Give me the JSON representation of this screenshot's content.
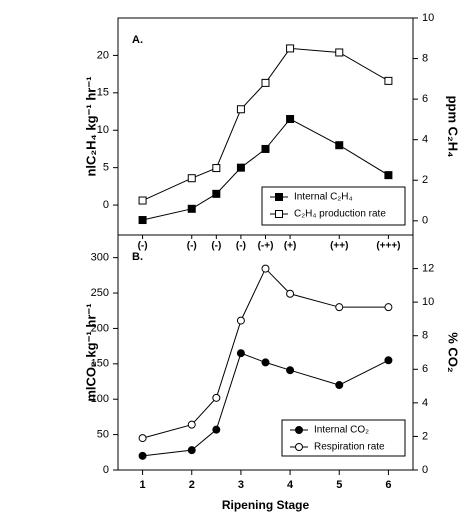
{
  "chart_data": [
    {
      "type": "line",
      "panel_label": "A.",
      "y_label": "nlC₂H₄ kg⁻¹ hr⁻¹",
      "y2_label": "ppm C₂H₄",
      "x": [
        1,
        2,
        2.5,
        3,
        3.5,
        4,
        5,
        6
      ],
      "x_labels": [
        "(-)",
        "(-)",
        "(-)",
        "(-)",
        "(-+)",
        "(+)",
        "(++)",
        "(+++)"
      ],
      "xlim": [
        0.5,
        6.5
      ],
      "ylim": [
        -4,
        25
      ],
      "yticks": [
        0,
        5,
        10,
        15,
        20
      ],
      "y2lim": [
        -0.7,
        10
      ],
      "y2ticks": [
        0,
        2,
        4,
        6,
        8,
        10
      ],
      "series": [
        {
          "name": "Internal C₂H₄",
          "color": "#000000",
          "marker": "square",
          "marker_fill": "#000000",
          "values": [
            -2,
            -0.5,
            1.5,
            5,
            7.5,
            11.5,
            8,
            4
          ]
        },
        {
          "name": "C₂H₄ production rate",
          "color": "#000000",
          "marker": "square",
          "marker_fill": "#ffffff",
          "axis": "y2",
          "values": [
            1.0,
            2.1,
            2.6,
            5.5,
            6.8,
            8.5,
            8.3,
            6.9
          ]
        }
      ]
    },
    {
      "type": "line",
      "panel_label": "B.",
      "x_label": "Ripening Stage",
      "y_label": "mlCO₂ kg⁻¹ hr⁻¹",
      "y2_label": "% CO₂",
      "x": [
        1,
        2,
        2.5,
        3,
        3.5,
        4,
        5,
        6
      ],
      "xlim": [
        0.5,
        6.5
      ],
      "xticks": [
        1,
        2,
        3,
        4,
        5,
        6
      ],
      "ylim": [
        0,
        332
      ],
      "yticks": [
        0,
        50,
        100,
        150,
        200,
        250,
        300
      ],
      "y2lim": [
        0,
        14
      ],
      "y2ticks": [
        0,
        2,
        4,
        6,
        8,
        10,
        12
      ],
      "series": [
        {
          "name": "Internal CO₂",
          "color": "#000000",
          "marker": "circle",
          "marker_fill": "#000000",
          "values": [
            20,
            28,
            57,
            165,
            152,
            141,
            120,
            155
          ]
        },
        {
          "name": "Respiration rate",
          "color": "#000000",
          "marker": "circle",
          "marker_fill": "#ffffff",
          "axis": "y2",
          "values": [
            1.9,
            2.7,
            4.3,
            8.9,
            12.0,
            10.5,
            9.7,
            9.7
          ]
        }
      ]
    }
  ]
}
